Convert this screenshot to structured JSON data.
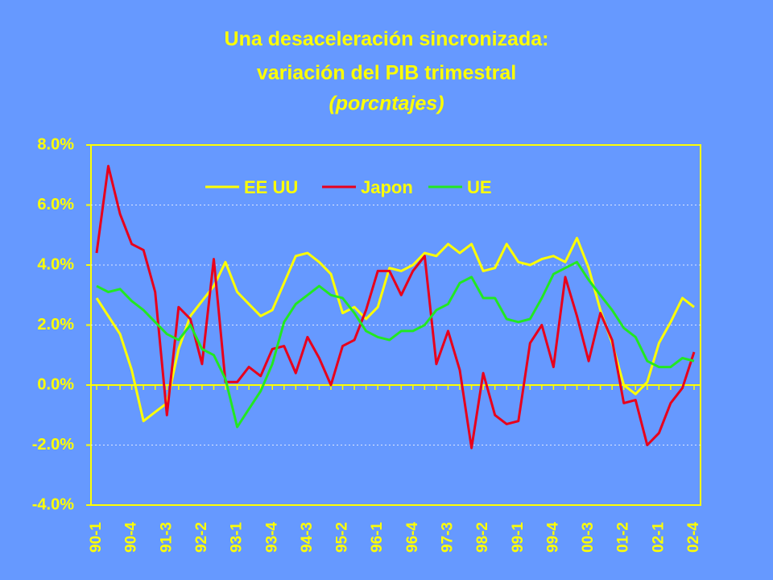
{
  "chart_data": {
    "type": "line",
    "title": "Una desaceleración sincronizada:",
    "title2": "variación del PIB trimestral",
    "subtitle": "(porcntajes)",
    "categories": [
      "90-1",
      null,
      null,
      "90-4",
      null,
      null,
      "91-3",
      null,
      null,
      "92-2",
      null,
      null,
      "93-1",
      null,
      null,
      "93-4",
      null,
      null,
      "94-3",
      null,
      null,
      "95-2",
      null,
      null,
      "96-1",
      null,
      null,
      "96-4",
      null,
      null,
      "97-3",
      null,
      null,
      "98-2",
      null,
      null,
      "99-1",
      null,
      null,
      "99-4",
      null,
      null,
      "00-3",
      null,
      null,
      "01-2",
      null,
      null,
      "02-1",
      null,
      null,
      "02-4"
    ],
    "series": [
      {
        "name": "EE UU",
        "color": "#ffff00",
        "values": [
          2.9,
          2.3,
          1.7,
          0.5,
          -1.2,
          -0.9,
          -0.6,
          1.2,
          2.3,
          2.8,
          3.3,
          4.1,
          3.1,
          2.7,
          2.3,
          2.5,
          3.4,
          4.3,
          4.4,
          4.1,
          3.7,
          2.4,
          2.6,
          2.2,
          2.6,
          3.9,
          3.8,
          4.0,
          4.4,
          4.3,
          4.7,
          4.4,
          4.7,
          3.8,
          3.9,
          4.7,
          4.1,
          4.0,
          4.2,
          4.3,
          4.1,
          4.9,
          3.9,
          2.5,
          1.4,
          0.0,
          -0.3,
          0.1,
          1.4,
          2.1,
          2.9,
          2.6
        ]
      },
      {
        "name": "Japon",
        "color": "#e8001c",
        "values": [
          4.4,
          7.3,
          5.7,
          4.7,
          4.5,
          3.1,
          -1.0,
          2.6,
          2.2,
          0.7,
          4.2,
          0.1,
          0.1,
          0.6,
          0.3,
          1.2,
          1.3,
          0.4,
          1.6,
          0.9,
          0.0,
          1.3,
          1.5,
          2.5,
          3.8,
          3.8,
          3.0,
          3.8,
          4.3,
          0.7,
          1.8,
          0.5,
          -2.1,
          0.4,
          -1.0,
          -1.3,
          -1.2,
          1.4,
          2.0,
          0.6,
          3.6,
          2.3,
          0.8,
          2.4,
          1.5,
          -0.6,
          -0.5,
          -2.0,
          -1.6,
          -0.6,
          -0.1,
          1.1
        ]
      },
      {
        "name": "UE",
        "color": "#22e822",
        "values": [
          3.3,
          3.1,
          3.2,
          2.8,
          2.5,
          2.1,
          1.7,
          1.5,
          2.0,
          1.2,
          1.0,
          0.2,
          -1.4,
          -0.8,
          -0.2,
          0.7,
          2.1,
          2.7,
          3.0,
          3.3,
          3.0,
          2.9,
          2.4,
          1.8,
          1.6,
          1.5,
          1.8,
          1.8,
          2.0,
          2.5,
          2.7,
          3.4,
          3.6,
          2.9,
          2.9,
          2.2,
          2.1,
          2.2,
          2.9,
          3.7,
          3.9,
          4.1,
          3.5,
          3.0,
          2.5,
          1.9,
          1.6,
          0.8,
          0.6,
          0.6,
          0.9,
          0.8
        ]
      }
    ],
    "ylim": [
      -4,
      8
    ],
    "yticks": [
      {
        "value": -4,
        "label": "-4.0%"
      },
      {
        "value": -2,
        "label": "-2.0%"
      },
      {
        "value": 0,
        "label": "0.0%"
      },
      {
        "value": 2,
        "label": "2.0%"
      },
      {
        "value": 4,
        "label": "4.0%"
      },
      {
        "value": 6,
        "label": "6.0%"
      },
      {
        "value": 8,
        "label": "8.0%"
      }
    ],
    "grid": true,
    "legend": "top"
  }
}
